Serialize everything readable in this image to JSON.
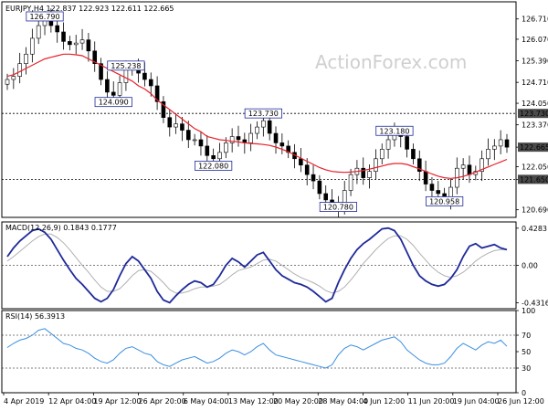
{
  "chart_data": {
    "type": "candlestick",
    "watermark": "ActionForex.com",
    "price_panel": {
      "title": "EURJPY,H4  122.837 122.923 122.611 122.665",
      "ylim": [
        120.45,
        127.25
      ],
      "y_ticks": [
        "126.710",
        "126.070",
        "125.390",
        "124.710",
        "124.050",
        "123.370",
        "122.665",
        "122.050",
        "121.650",
        "120.690"
      ],
      "y_tick_values": [
        126.71,
        126.07,
        125.39,
        124.71,
        124.05,
        123.37,
        122.665,
        122.05,
        121.65,
        120.69
      ],
      "highlighted_ticks": [
        {
          "label": "123.730",
          "value": 123.73,
          "level": "resistance"
        },
        {
          "label": "122.665",
          "value": 122.665,
          "level": "current price"
        },
        {
          "label": "121.650",
          "value": 121.65,
          "level": "support"
        }
      ],
      "horizontal_lines": [
        123.73,
        121.65
      ],
      "annotations": [
        {
          "label": "126.790",
          "x_index": 6,
          "value": 126.79
        },
        {
          "label": "125.238",
          "x_index": 19,
          "value": 125.238
        },
        {
          "label": "124.090",
          "x_index": 17,
          "value": 124.09
        },
        {
          "label": "123.730",
          "x_index": 41,
          "value": 123.73
        },
        {
          "label": "122.080",
          "x_index": 33,
          "value": 122.08
        },
        {
          "label": "123.180",
          "x_index": 62,
          "value": 123.18
        },
        {
          "label": "120.780",
          "x_index": 53,
          "value": 120.78
        },
        {
          "label": "120.958",
          "x_index": 70,
          "value": 120.958
        }
      ],
      "close": [
        124.8,
        124.9,
        125.3,
        125.6,
        126.1,
        126.5,
        126.7,
        126.5,
        126.3,
        126.0,
        125.9,
        125.95,
        126.05,
        125.7,
        125.3,
        124.8,
        124.4,
        124.3,
        124.7,
        125.1,
        125.2,
        125.0,
        124.8,
        124.6,
        124.1,
        123.6,
        123.3,
        123.4,
        123.2,
        122.9,
        122.9,
        122.7,
        122.4,
        122.3,
        122.5,
        122.8,
        123.0,
        122.9,
        122.8,
        123.1,
        123.3,
        123.5,
        123.1,
        122.8,
        122.7,
        122.5,
        122.3,
        122.1,
        121.8,
        121.6,
        121.2,
        121.0,
        120.9,
        120.8,
        121.3,
        121.8,
        122.0,
        121.7,
        121.9,
        122.3,
        122.6,
        122.9,
        123.1,
        123.0,
        122.6,
        122.3,
        121.9,
        121.5,
        121.3,
        121.2,
        121.0,
        121.4,
        122.0,
        122.1,
        121.8,
        121.9,
        122.3,
        122.6,
        122.7,
        122.9,
        122.665
      ],
      "ma": [
        124.9,
        124.95,
        125.05,
        125.15,
        125.25,
        125.35,
        125.45,
        125.5,
        125.55,
        125.6,
        125.6,
        125.58,
        125.55,
        125.45,
        125.35,
        125.25,
        125.15,
        125.05,
        124.95,
        124.85,
        124.75,
        124.6,
        124.5,
        124.35,
        124.15,
        124.0,
        123.85,
        123.7,
        123.55,
        123.4,
        123.25,
        123.15,
        123.0,
        122.95,
        122.9,
        122.88,
        122.85,
        122.83,
        122.8,
        122.78,
        122.77,
        122.75,
        122.72,
        122.67,
        122.6,
        122.52,
        122.42,
        122.32,
        122.22,
        122.12,
        122.02,
        121.95,
        121.9,
        121.88,
        121.87,
        121.88,
        121.9,
        121.93,
        121.97,
        122.02,
        122.07,
        122.12,
        122.15,
        122.15,
        122.12,
        122.05,
        121.98,
        121.9,
        121.82,
        121.75,
        121.7,
        121.68,
        121.7,
        121.74,
        121.8,
        121.88,
        121.96,
        122.04,
        122.12,
        122.2,
        122.28
      ]
    },
    "macd_panel": {
      "title": "MACD(12,26,9) 0.1843 0.1777",
      "ylim": [
        -0.5,
        0.5
      ],
      "y_ticks": [
        "0.4283",
        "0.00",
        "-0.4316"
      ],
      "y_tick_values": [
        0.4283,
        0.0,
        -0.4316
      ],
      "macd": [
        0.1,
        0.2,
        0.28,
        0.34,
        0.4,
        0.42,
        0.38,
        0.3,
        0.18,
        0.06,
        -0.05,
        -0.15,
        -0.22,
        -0.3,
        -0.38,
        -0.42,
        -0.38,
        -0.28,
        -0.12,
        0.02,
        0.1,
        0.05,
        -0.05,
        -0.15,
        -0.3,
        -0.4,
        -0.43,
        -0.35,
        -0.28,
        -0.22,
        -0.18,
        -0.2,
        -0.25,
        -0.22,
        -0.12,
        0.0,
        0.08,
        0.04,
        -0.02,
        0.05,
        0.12,
        0.15,
        0.05,
        -0.05,
        -0.12,
        -0.16,
        -0.2,
        -0.22,
        -0.25,
        -0.3,
        -0.36,
        -0.42,
        -0.38,
        -0.2,
        -0.05,
        0.08,
        0.18,
        0.25,
        0.3,
        0.36,
        0.42,
        0.43,
        0.4,
        0.3,
        0.15,
        0.0,
        -0.12,
        -0.18,
        -0.22,
        -0.24,
        -0.22,
        -0.15,
        -0.05,
        0.1,
        0.22,
        0.25,
        0.2,
        0.22,
        0.24,
        0.2,
        0.18
      ],
      "signal": [
        0.05,
        0.1,
        0.16,
        0.22,
        0.28,
        0.33,
        0.36,
        0.36,
        0.32,
        0.26,
        0.18,
        0.09,
        0.0,
        -0.08,
        -0.17,
        -0.25,
        -0.3,
        -0.3,
        -0.27,
        -0.2,
        -0.12,
        -0.06,
        -0.05,
        -0.07,
        -0.13,
        -0.2,
        -0.28,
        -0.32,
        -0.32,
        -0.3,
        -0.27,
        -0.25,
        -0.25,
        -0.24,
        -0.22,
        -0.17,
        -0.11,
        -0.06,
        -0.04,
        -0.02,
        0.02,
        0.06,
        0.07,
        0.05,
        0.0,
        -0.05,
        -0.1,
        -0.14,
        -0.17,
        -0.2,
        -0.24,
        -0.29,
        -0.32,
        -0.3,
        -0.25,
        -0.17,
        -0.08,
        0.02,
        0.1,
        0.18,
        0.25,
        0.31,
        0.34,
        0.34,
        0.3,
        0.23,
        0.14,
        0.06,
        -0.02,
        -0.08,
        -0.12,
        -0.14,
        -0.12,
        -0.08,
        -0.02,
        0.05,
        0.1,
        0.14,
        0.17,
        0.18,
        0.18
      ]
    },
    "rsi_panel": {
      "title": "RSI(14) 56.3913",
      "ylim": [
        0,
        100
      ],
      "y_ticks": [
        "100",
        "70",
        "50",
        "30",
        "0"
      ],
      "y_tick_values": [
        100,
        70,
        50,
        30,
        0
      ],
      "rsi": [
        55,
        60,
        64,
        66,
        70,
        76,
        78,
        72,
        66,
        60,
        58,
        54,
        52,
        48,
        42,
        38,
        36,
        40,
        48,
        54,
        56,
        52,
        48,
        46,
        38,
        34,
        32,
        36,
        40,
        42,
        44,
        40,
        36,
        38,
        42,
        48,
        52,
        50,
        46,
        50,
        56,
        60,
        52,
        46,
        44,
        42,
        40,
        38,
        36,
        34,
        32,
        30,
        34,
        46,
        54,
        58,
        56,
        52,
        56,
        60,
        64,
        66,
        68,
        62,
        52,
        46,
        40,
        36,
        34,
        34,
        36,
        44,
        54,
        60,
        56,
        52,
        58,
        62,
        60,
        64,
        56.39
      ]
    },
    "x_ticks": [
      "4 Apr 2019",
      "12 Apr 04:00",
      "19 Apr 12:00",
      "26 Apr 20:00",
      "6 May 04:00",
      "13 May 12:00",
      "20 May 20:00",
      "28 May 04:00",
      "4 Jun 12:00",
      "11 Jun 20:00",
      "19 Jun 04:00",
      "26 Jun 12:00"
    ],
    "colors": {
      "background": "#ffffff",
      "candle_up": "#000000",
      "candle_down": "#000000",
      "ma_line": "#e8202a",
      "macd_line": "#1f2a9a",
      "signal_line": "#b0b0b0",
      "rsi_line": "#3b8fe0",
      "label_border": "#1f2a9a",
      "highlight_bg": "#4a4a4a",
      "grid_dotted": "#000000"
    }
  }
}
